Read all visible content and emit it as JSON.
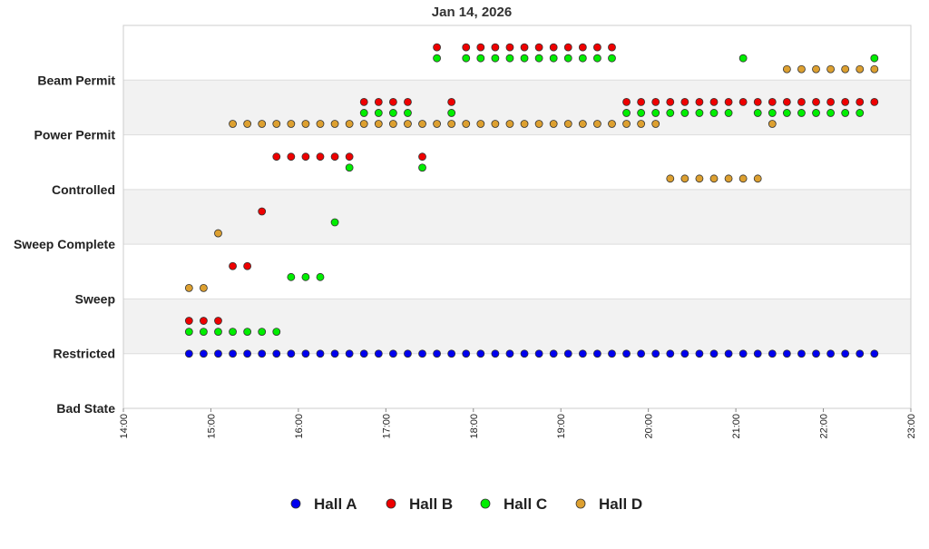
{
  "chart_data": {
    "type": "scatter",
    "title": "Jan 14, 2026",
    "xlabel": "",
    "ylabel": "",
    "x_ticks": [
      "14:00",
      "15:00",
      "16:00",
      "17:00",
      "18:00",
      "19:00",
      "20:00",
      "21:00",
      "22:00",
      "23:00"
    ],
    "xlim": [
      "14:00",
      "23:00"
    ],
    "y_categories": [
      "Bad State",
      "Restricted",
      "Sweep",
      "Sweep Complete",
      "Controlled",
      "Power Permit",
      "Beam Permit"
    ],
    "ylim": [
      0,
      7
    ],
    "alternating_bands": true,
    "legend_position": "bottom",
    "series": [
      {
        "name": "Hall A",
        "color": "#0000ee",
        "points": [
          [
            "14:45",
            1
          ],
          [
            "14:55",
            1
          ],
          [
            "15:05",
            1
          ],
          [
            "15:15",
            1
          ],
          [
            "15:25",
            1
          ],
          [
            "15:35",
            1
          ],
          [
            "15:45",
            1
          ],
          [
            "15:55",
            1
          ],
          [
            "16:05",
            1
          ],
          [
            "16:15",
            1
          ],
          [
            "16:25",
            1
          ],
          [
            "16:35",
            1
          ],
          [
            "16:45",
            1
          ],
          [
            "16:55",
            1
          ],
          [
            "17:05",
            1
          ],
          [
            "17:15",
            1
          ],
          [
            "17:25",
            1
          ],
          [
            "17:35",
            1
          ],
          [
            "17:45",
            1
          ],
          [
            "17:55",
            1
          ],
          [
            "18:05",
            1
          ],
          [
            "18:15",
            1
          ],
          [
            "18:25",
            1
          ],
          [
            "18:35",
            1
          ],
          [
            "18:45",
            1
          ],
          [
            "18:55",
            1
          ],
          [
            "19:05",
            1
          ],
          [
            "19:15",
            1
          ],
          [
            "19:25",
            1
          ],
          [
            "19:35",
            1
          ],
          [
            "19:45",
            1
          ],
          [
            "19:55",
            1
          ],
          [
            "20:05",
            1
          ],
          [
            "20:15",
            1
          ],
          [
            "20:25",
            1
          ],
          [
            "20:35",
            1
          ],
          [
            "20:45",
            1
          ],
          [
            "20:55",
            1
          ],
          [
            "21:05",
            1
          ],
          [
            "21:15",
            1
          ],
          [
            "21:25",
            1
          ],
          [
            "21:35",
            1
          ],
          [
            "21:45",
            1
          ],
          [
            "21:55",
            1
          ],
          [
            "22:05",
            1
          ],
          [
            "22:15",
            1
          ],
          [
            "22:25",
            1
          ],
          [
            "22:35",
            1
          ]
        ]
      },
      {
        "name": "Hall B",
        "color": "#ee0000",
        "points": [
          [
            "14:45",
            1.6
          ],
          [
            "14:55",
            1.6
          ],
          [
            "15:05",
            1.6
          ],
          [
            "15:15",
            2.6
          ],
          [
            "15:25",
            2.6
          ],
          [
            "15:35",
            3.6
          ],
          [
            "15:45",
            4.6
          ],
          [
            "15:55",
            4.6
          ],
          [
            "16:05",
            4.6
          ],
          [
            "16:15",
            4.6
          ],
          [
            "16:25",
            4.6
          ],
          [
            "16:35",
            4.6
          ],
          [
            "16:45",
            5.6
          ],
          [
            "16:55",
            5.6
          ],
          [
            "17:05",
            5.6
          ],
          [
            "17:15",
            5.6
          ],
          [
            "17:25",
            4.6
          ],
          [
            "17:35",
            6.6
          ],
          [
            "17:45",
            5.6
          ],
          [
            "17:55",
            6.6
          ],
          [
            "18:05",
            6.6
          ],
          [
            "18:15",
            6.6
          ],
          [
            "18:25",
            6.6
          ],
          [
            "18:35",
            6.6
          ],
          [
            "18:45",
            6.6
          ],
          [
            "18:55",
            6.6
          ],
          [
            "19:05",
            6.6
          ],
          [
            "19:15",
            6.6
          ],
          [
            "19:25",
            6.6
          ],
          [
            "19:35",
            6.6
          ],
          [
            "19:45",
            5.6
          ],
          [
            "19:55",
            5.6
          ],
          [
            "20:05",
            5.6
          ],
          [
            "20:15",
            5.6
          ],
          [
            "20:25",
            5.6
          ],
          [
            "20:35",
            5.6
          ],
          [
            "20:45",
            5.6
          ],
          [
            "20:55",
            5.6
          ],
          [
            "21:05",
            5.6
          ],
          [
            "21:15",
            5.6
          ],
          [
            "21:25",
            5.6
          ],
          [
            "21:35",
            5.6
          ],
          [
            "21:45",
            5.6
          ],
          [
            "21:55",
            5.6
          ],
          [
            "22:05",
            5.6
          ],
          [
            "22:15",
            5.6
          ],
          [
            "22:25",
            5.6
          ],
          [
            "22:35",
            5.6
          ]
        ]
      },
      {
        "name": "Hall C",
        "color": "#00ee00",
        "points": [
          [
            "14:45",
            1.4
          ],
          [
            "14:55",
            1.4
          ],
          [
            "15:05",
            1.4
          ],
          [
            "15:15",
            1.4
          ],
          [
            "15:25",
            1.4
          ],
          [
            "15:35",
            1.4
          ],
          [
            "15:45",
            1.4
          ],
          [
            "15:55",
            2.4
          ],
          [
            "16:05",
            2.4
          ],
          [
            "16:15",
            2.4
          ],
          [
            "16:25",
            3.4
          ],
          [
            "16:35",
            4.4
          ],
          [
            "16:45",
            5.4
          ],
          [
            "16:55",
            5.4
          ],
          [
            "17:05",
            5.4
          ],
          [
            "17:15",
            5.4
          ],
          [
            "17:25",
            4.4
          ],
          [
            "17:35",
            6.4
          ],
          [
            "17:45",
            5.4
          ],
          [
            "17:55",
            6.4
          ],
          [
            "18:05",
            6.4
          ],
          [
            "18:15",
            6.4
          ],
          [
            "18:25",
            6.4
          ],
          [
            "18:35",
            6.4
          ],
          [
            "18:45",
            6.4
          ],
          [
            "18:55",
            6.4
          ],
          [
            "19:05",
            6.4
          ],
          [
            "19:15",
            6.4
          ],
          [
            "19:25",
            6.4
          ],
          [
            "19:35",
            6.4
          ],
          [
            "19:45",
            5.4
          ],
          [
            "19:55",
            5.4
          ],
          [
            "20:05",
            5.4
          ],
          [
            "20:15",
            5.4
          ],
          [
            "20:25",
            5.4
          ],
          [
            "20:35",
            5.4
          ],
          [
            "20:45",
            5.4
          ],
          [
            "20:55",
            5.4
          ],
          [
            "21:05",
            6.4
          ],
          [
            "21:15",
            5.4
          ],
          [
            "21:25",
            5.4
          ],
          [
            "21:35",
            5.4
          ],
          [
            "21:45",
            5.4
          ],
          [
            "21:55",
            5.4
          ],
          [
            "22:05",
            5.4
          ],
          [
            "22:15",
            5.4
          ],
          [
            "22:25",
            5.4
          ],
          [
            "22:35",
            6.4
          ]
        ]
      },
      {
        "name": "Hall D",
        "color": "#dda030",
        "points": [
          [
            "14:45",
            2.2
          ],
          [
            "14:55",
            2.2
          ],
          [
            "15:05",
            3.2
          ],
          [
            "15:15",
            5.2
          ],
          [
            "15:25",
            5.2
          ],
          [
            "15:35",
            5.2
          ],
          [
            "15:45",
            5.2
          ],
          [
            "15:55",
            5.2
          ],
          [
            "16:05",
            5.2
          ],
          [
            "16:15",
            5.2
          ],
          [
            "16:25",
            5.2
          ],
          [
            "16:35",
            5.2
          ],
          [
            "16:45",
            5.2
          ],
          [
            "16:55",
            5.2
          ],
          [
            "17:05",
            5.2
          ],
          [
            "17:15",
            5.2
          ],
          [
            "17:25",
            5.2
          ],
          [
            "17:35",
            5.2
          ],
          [
            "17:45",
            5.2
          ],
          [
            "17:55",
            5.2
          ],
          [
            "18:05",
            5.2
          ],
          [
            "18:15",
            5.2
          ],
          [
            "18:25",
            5.2
          ],
          [
            "18:35",
            5.2
          ],
          [
            "18:45",
            5.2
          ],
          [
            "18:55",
            5.2
          ],
          [
            "19:05",
            5.2
          ],
          [
            "19:15",
            5.2
          ],
          [
            "19:25",
            5.2
          ],
          [
            "19:35",
            5.2
          ],
          [
            "19:45",
            5.2
          ],
          [
            "19:55",
            5.2
          ],
          [
            "20:05",
            5.2
          ],
          [
            "20:15",
            4.2
          ],
          [
            "20:25",
            4.2
          ],
          [
            "20:35",
            4.2
          ],
          [
            "20:45",
            4.2
          ],
          [
            "20:55",
            4.2
          ],
          [
            "21:05",
            4.2
          ],
          [
            "21:15",
            4.2
          ],
          [
            "21:25",
            5.2
          ],
          [
            "21:35",
            6.2
          ],
          [
            "21:45",
            6.2
          ],
          [
            "21:55",
            6.2
          ],
          [
            "22:05",
            6.2
          ],
          [
            "22:15",
            6.2
          ],
          [
            "22:25",
            6.2
          ],
          [
            "22:35",
            6.2
          ]
        ]
      }
    ]
  }
}
